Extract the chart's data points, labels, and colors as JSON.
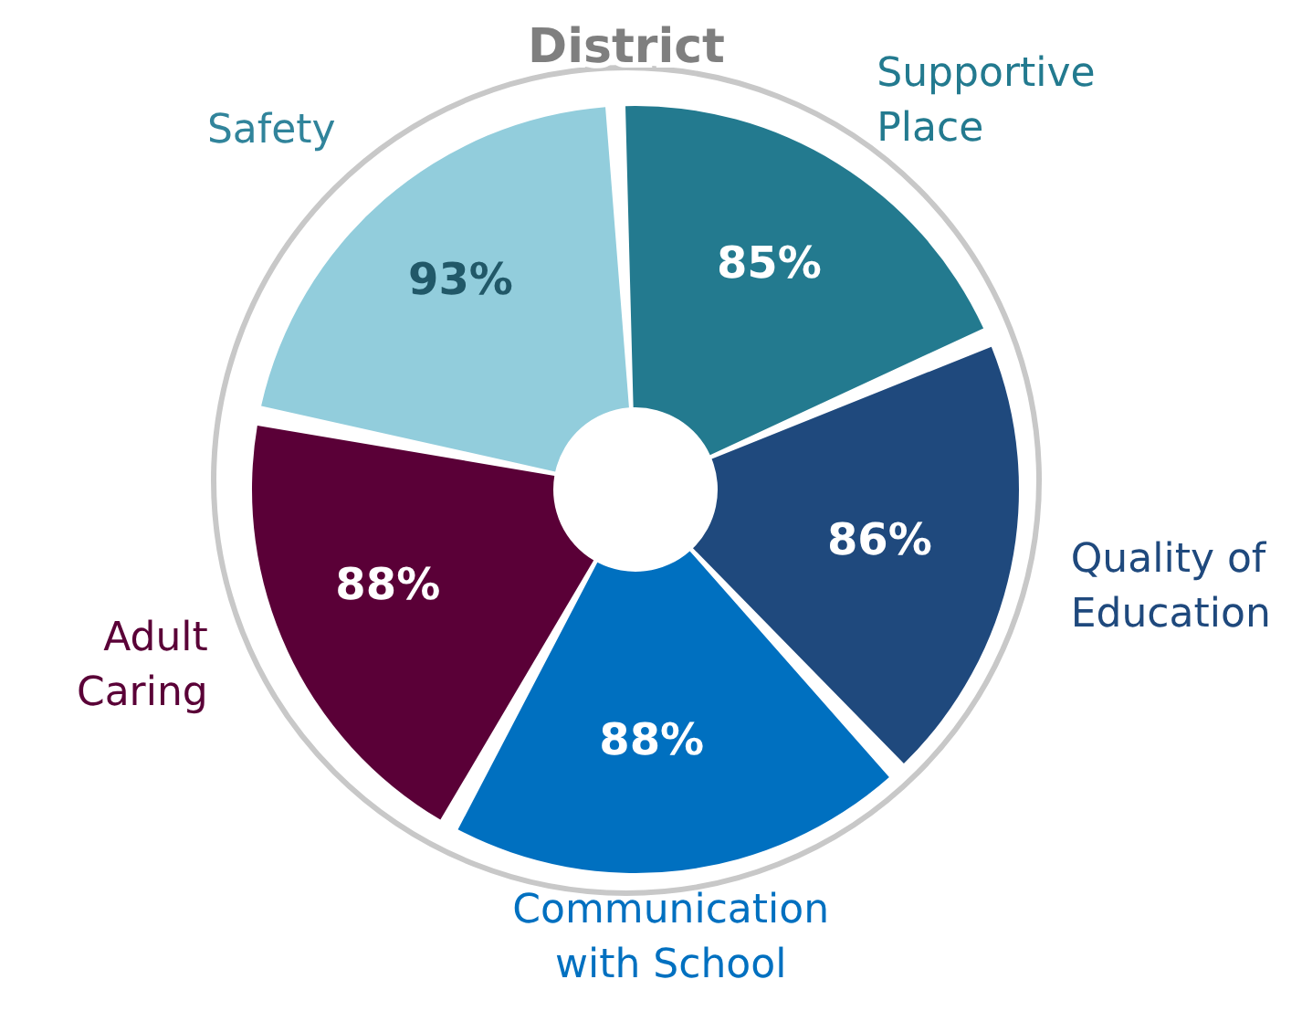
{
  "chart_data": {
    "type": "other",
    "title": "District",
    "categories": [
      "Supportive Place",
      "Quality of Education",
      "Communication with School",
      "Adult Caring",
      "Safety"
    ],
    "values": [
      85,
      86,
      88,
      88,
      93
    ],
    "value_labels": [
      "85%",
      "86%",
      "88%",
      "88%",
      "93%"
    ],
    "colors": [
      "#237a8f",
      "#1f497d",
      "#0070c0",
      "#5a0037",
      "#92cddc"
    ]
  }
}
